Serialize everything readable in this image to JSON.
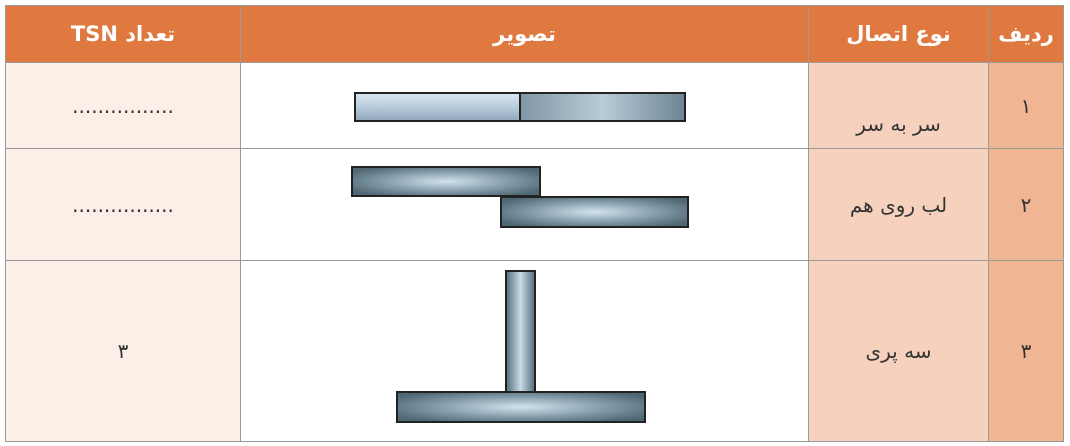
{
  "table": {
    "header": [
      "ردیف",
      "نوع اتصال",
      "تصویر",
      "تعداد TSN"
    ],
    "rows": [
      [
        "۱",
        "سر به سر",
        "................"
      ],
      [
        "۲",
        "لب روی هم",
        "................"
      ],
      [
        "۳",
        "سه  پری",
        "۳"
      ]
    ]
  }
}
